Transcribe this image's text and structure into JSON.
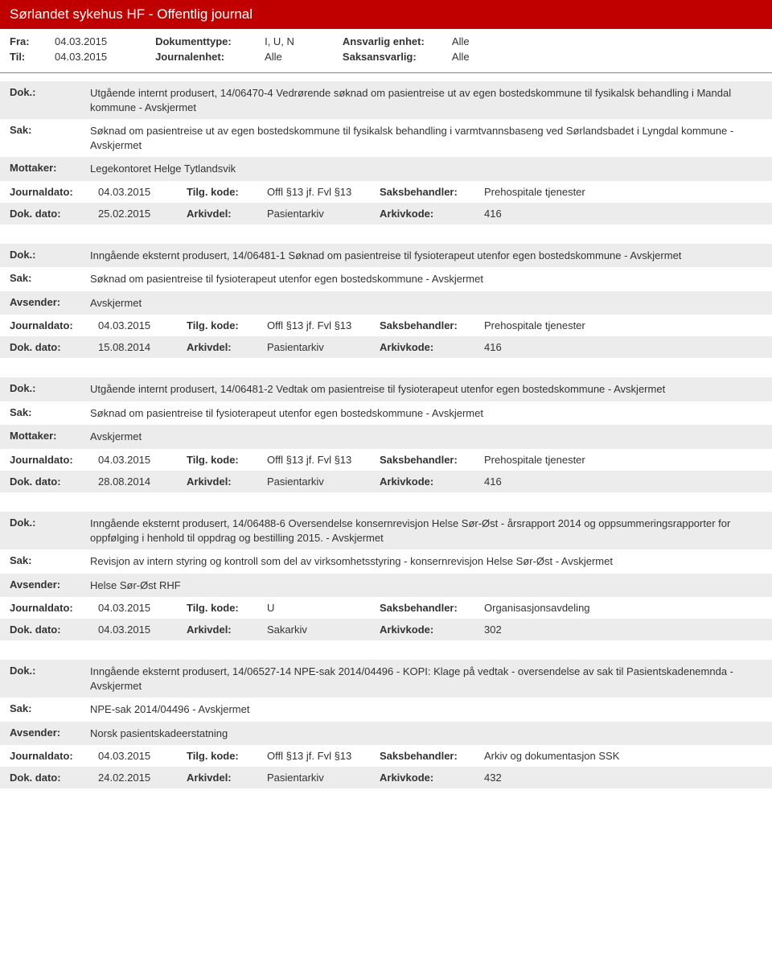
{
  "header": {
    "title": "Sørlandet sykehus HF - Offentlig journal"
  },
  "meta": {
    "fra_label": "Fra:",
    "fra_value": "04.03.2015",
    "til_label": "Til:",
    "til_value": "04.03.2015",
    "doktype_label": "Dokumenttype:",
    "doktype_value": "I, U, N",
    "journalenhet_label": "Journalenhet:",
    "journalenhet_value": "Alle",
    "ansvarlig_label": "Ansvarlig enhet:",
    "ansvarlig_value": "Alle",
    "saksansvarlig_label": "Saksansvarlig:",
    "saksansvarlig_value": "Alle"
  },
  "labels": {
    "dok": "Dok.:",
    "sak": "Sak:",
    "mottaker": "Mottaker:",
    "avsender": "Avsender:",
    "journaldato": "Journaldato:",
    "tilgkode": "Tilg. kode:",
    "saksbehandler": "Saksbehandler:",
    "dokdato": "Dok. dato:",
    "arkivdel": "Arkivdel:",
    "arkivkode": "Arkivkode:"
  },
  "entries": [
    {
      "dok": "Utgående internt produsert, 14/06470-4 Vedrørende søknad om pasientreise ut av egen bostedskommune til fysikalsk behandling i Mandal kommune - Avskjermet",
      "sak": "Søknad om pasientreise ut av egen bostedskommune til fysikalsk behandling i varmtvannsbaseng ved Sørlandsbadet i Lyngdal kommune - Avskjermet",
      "party_label": "Mottaker:",
      "party": "Legekontoret Helge Tytlandsvik",
      "journaldato": "04.03.2015",
      "tilgkode": "Offl §13 jf. Fvl §13",
      "saksbehandler": "Prehospitale tjenester",
      "dokdato": "25.02.2015",
      "arkivdel": "Pasientarkiv",
      "arkivkode": "416"
    },
    {
      "dok": "Inngående eksternt produsert, 14/06481-1 Søknad om pasientreise til fysioterapeut utenfor egen bostedskommune - Avskjermet",
      "sak": "Søknad om pasientreise til fysioterapeut utenfor egen bostedskommune - Avskjermet",
      "party_label": "Avsender:",
      "party": "Avskjermet",
      "journaldato": "04.03.2015",
      "tilgkode": "Offl §13 jf. Fvl §13",
      "saksbehandler": "Prehospitale tjenester",
      "dokdato": "15.08.2014",
      "arkivdel": "Pasientarkiv",
      "arkivkode": "416"
    },
    {
      "dok": "Utgående internt produsert, 14/06481-2 Vedtak om pasientreise til fysioterapeut utenfor egen bostedskommune - Avskjermet",
      "sak": "Søknad om pasientreise til fysioterapeut utenfor egen bostedskommune - Avskjermet",
      "party_label": "Mottaker:",
      "party": "Avskjermet",
      "journaldato": "04.03.2015",
      "tilgkode": "Offl §13 jf. Fvl §13",
      "saksbehandler": "Prehospitale tjenester",
      "dokdato": "28.08.2014",
      "arkivdel": "Pasientarkiv",
      "arkivkode": "416"
    },
    {
      "dok": "Inngående eksternt produsert, 14/06488-6 Oversendelse konsernrevisjon Helse Sør-Øst - årsrapport 2014 og oppsummeringsrapporter for oppfølging i henhold til oppdrag og bestilling 2015. - Avskjermet",
      "sak": "Revisjon av intern styring og kontroll som del av virksomhetsstyring - konsernrevisjon Helse Sør-Øst - Avskjermet",
      "party_label": "Avsender:",
      "party": "Helse Sør-Øst RHF",
      "journaldato": "04.03.2015",
      "tilgkode": "U",
      "saksbehandler": "Organisasjonsavdeling",
      "dokdato": "04.03.2015",
      "arkivdel": "Sakarkiv",
      "arkivkode": "302"
    },
    {
      "dok": "Inngående eksternt produsert, 14/06527-14 NPE-sak 2014/04496 - KOPI: Klage på vedtak - oversendelse av sak til Pasientskadenemnda - Avskjermet",
      "sak": "NPE-sak 2014/04496 - Avskjermet",
      "party_label": "Avsender:",
      "party": "Norsk pasientskadeerstatning",
      "journaldato": "04.03.2015",
      "tilgkode": "Offl §13 jf. Fvl §13",
      "saksbehandler": "Arkiv og dokumentasjon SSK",
      "dokdato": "24.02.2015",
      "arkivdel": "Pasientarkiv",
      "arkivkode": "432"
    }
  ]
}
